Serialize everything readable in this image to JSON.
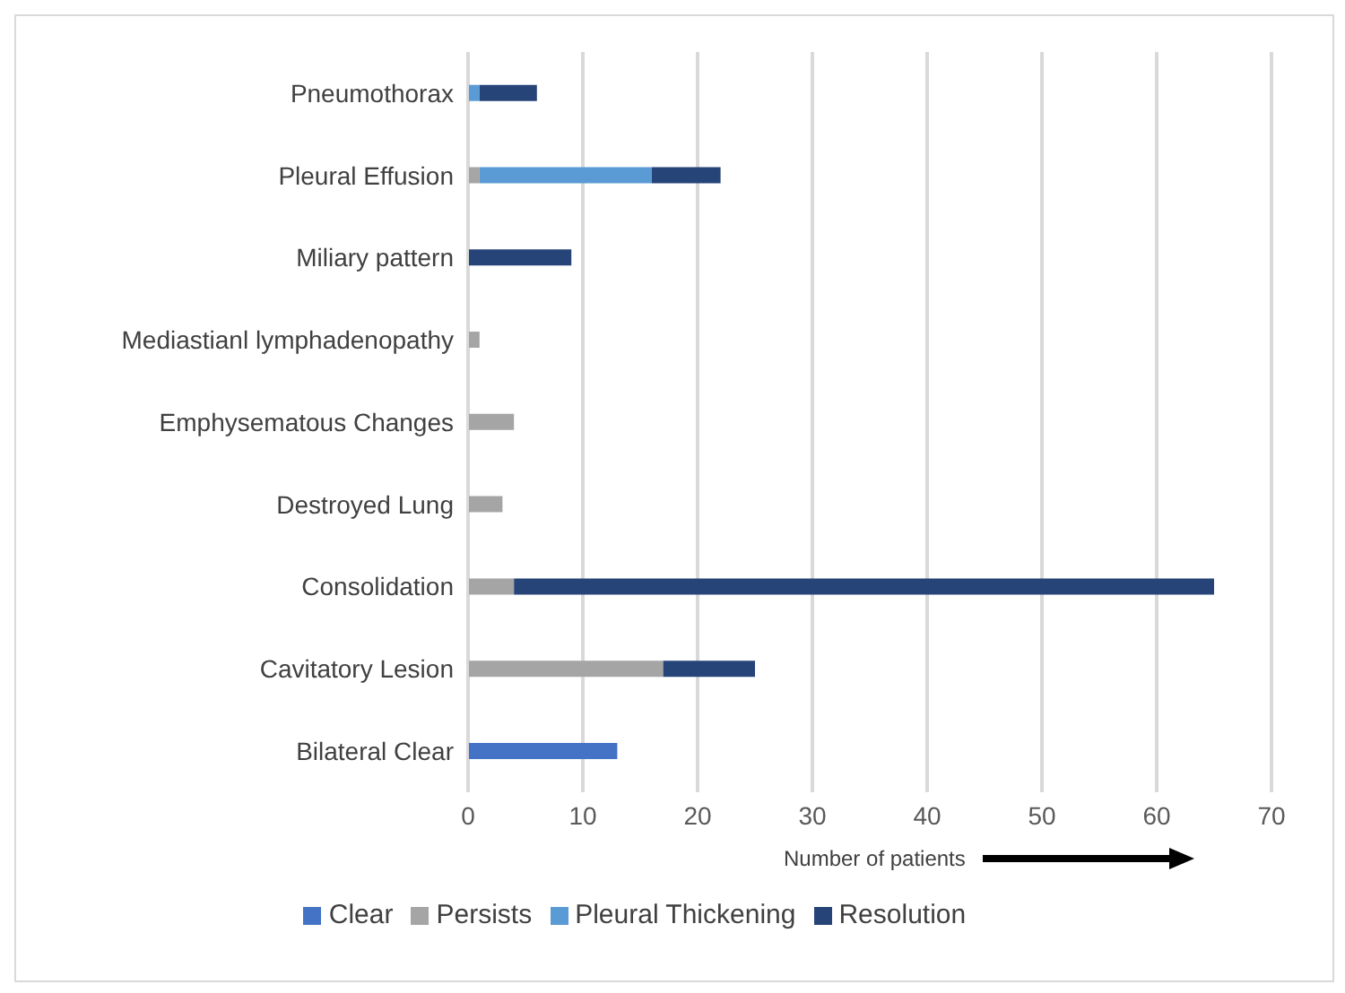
{
  "chart_data": {
    "type": "bar",
    "orientation": "horizontal",
    "stacked": true,
    "xlabel": "Number of patients",
    "categories": [
      "Pneumothorax",
      "Pleural Effusion",
      "Miliary pattern",
      "Mediastianl lymphadenopathy",
      "Emphysematous Changes",
      "Destroyed Lung",
      "Consolidation",
      "Cavitatory Lesion",
      "Bilateral Clear"
    ],
    "series": [
      {
        "name": "Clear",
        "color": "#4472c4",
        "values": [
          null,
          null,
          null,
          null,
          null,
          null,
          null,
          null,
          13
        ]
      },
      {
        "name": "Persists",
        "color": "#a5a5a5",
        "values": [
          null,
          1,
          null,
          1,
          4,
          3,
          4,
          17,
          null
        ]
      },
      {
        "name": "Pleural Thickening",
        "color": "#5b9bd5",
        "values": [
          1,
          15,
          null,
          null,
          null,
          null,
          null,
          null,
          null
        ]
      },
      {
        "name": "Resolution",
        "color": "#264478",
        "values": [
          5,
          6,
          9,
          null,
          null,
          null,
          61,
          8,
          null
        ]
      }
    ],
    "xlim": [
      0,
      70
    ],
    "xticks": [
      0,
      10,
      20,
      30,
      40,
      50,
      60,
      70
    ],
    "grid": "x",
    "legend": "bottom"
  }
}
